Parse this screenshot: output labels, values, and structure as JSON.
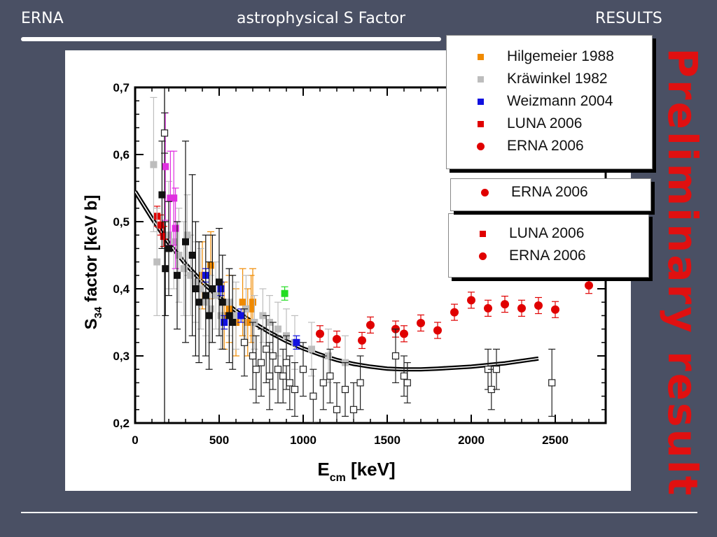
{
  "header": {
    "left": "ERNA",
    "center": "astrophysical S Factor",
    "right": "RESULTS"
  },
  "watermark": "Preliminary result",
  "legend_main": [
    {
      "label": "Hilgemeier 1988",
      "color": "#f08a00",
      "shape": "square"
    },
    {
      "label": "Kräwinkel 1982",
      "color": "#bdbdbd",
      "shape": "square"
    },
    {
      "label": "Weizmann 2004",
      "color": "#1010e0",
      "shape": "square"
    },
    {
      "label": "LUNA 2006",
      "color": "#e00000",
      "shape": "square"
    },
    {
      "label": "ERNA 2006",
      "color": "#e00000",
      "shape": "circle"
    }
  ],
  "legend_ghost": [
    {
      "label": "ERNA 2006",
      "color": "#e00000",
      "shape": "circle"
    }
  ],
  "legend_lower": [
    {
      "label": "LUNA 2006",
      "color": "#e00000",
      "shape": "square"
    },
    {
      "label": "ERNA 2006",
      "color": "#e00000",
      "shape": "circle"
    }
  ],
  "chart_data": {
    "type": "scatter",
    "xlabel_main": "E",
    "xlabel_sub": "cm",
    "xlabel_unit": "[keV]",
    "ylabel_main": "S",
    "ylabel_sub": "34",
    "ylabel_rest": "factor [keV b]",
    "xlim": [
      0,
      2800
    ],
    "ylim": [
      0.2,
      0.7
    ],
    "xticks": [
      0,
      500,
      1000,
      1500,
      2000,
      2500
    ],
    "xtick_labels": [
      "0",
      "500",
      "1000",
      "1500",
      "2000",
      "2500"
    ],
    "yticks": [
      0.2,
      0.3,
      0.4,
      0.5,
      0.6,
      0.7
    ],
    "ytick_labels": [
      "0,2",
      "0,3",
      "0,4",
      "0,5",
      "0,6",
      "0,7"
    ],
    "series": [
      {
        "name": "ERNA 2006",
        "color": "#e00000",
        "marker": "circle",
        "x": [
          1100,
          1200,
          1350,
          1400,
          1550,
          1600,
          1700,
          1800,
          1900,
          2000,
          2100,
          2200,
          2300,
          2400,
          2500,
          2700
        ],
        "y": [
          0.333,
          0.325,
          0.323,
          0.346,
          0.34,
          0.333,
          0.349,
          0.338,
          0.365,
          0.383,
          0.371,
          0.377,
          0.371,
          0.375,
          0.369,
          0.405
        ],
        "err": [
          0.012,
          0.012,
          0.012,
          0.012,
          0.012,
          0.012,
          0.012,
          0.012,
          0.012,
          0.012,
          0.012,
          0.012,
          0.012,
          0.012,
          0.012,
          0.012
        ]
      },
      {
        "name": "LUNA 2006",
        "color": "#e00000",
        "marker": "square",
        "x": [
          130,
          150,
          170
        ],
        "y": [
          0.508,
          0.495,
          0.478
        ],
        "err": [
          0.015,
          0.015,
          0.015
        ]
      },
      {
        "name": "Hilgemeier 1988",
        "color": "#f08a00",
        "marker": "square",
        "x": [
          400,
          450,
          530,
          560,
          600,
          640,
          670,
          690,
          700
        ],
        "y": [
          0.42,
          0.435,
          0.36,
          0.37,
          0.35,
          0.38,
          0.35,
          0.37,
          0.38
        ],
        "err": [
          0.05,
          0.05,
          0.05,
          0.05,
          0.05,
          0.05,
          0.05,
          0.05,
          0.05
        ]
      },
      {
        "name": "Kräwinkel 1982",
        "color": "#bdbdbd",
        "marker": "square",
        "x": [
          110,
          130,
          200,
          230,
          260,
          290,
          310,
          330,
          360,
          390,
          420,
          450,
          480,
          510,
          560,
          600,
          660,
          710,
          760,
          800,
          850,
          900,
          950,
          1050,
          1150,
          1250
        ],
        "y": [
          0.585,
          0.44,
          0.48,
          0.47,
          0.45,
          0.43,
          0.48,
          0.42,
          0.41,
          0.4,
          0.38,
          0.37,
          0.39,
          0.36,
          0.38,
          0.36,
          0.37,
          0.35,
          0.36,
          0.35,
          0.34,
          0.33,
          0.32,
          0.31,
          0.3,
          0.29
        ],
        "err": [
          0.1,
          0.08,
          0.08,
          0.07,
          0.07,
          0.07,
          0.06,
          0.06,
          0.06,
          0.06,
          0.05,
          0.05,
          0.05,
          0.05,
          0.05,
          0.05,
          0.05,
          0.04,
          0.04,
          0.04,
          0.04,
          0.04,
          0.04,
          0.04,
          0.04,
          0.04
        ]
      },
      {
        "name": "Weizmann 2004",
        "color": "#1010e0",
        "marker": "square",
        "x": [
          420,
          510,
          530,
          630,
          960
        ],
        "y": [
          0.42,
          0.4,
          0.35,
          0.36,
          0.32
        ],
        "err": [
          0.01,
          0.01,
          0.01,
          0.01,
          0.01
        ]
      },
      {
        "name": "",
        "color": "#e030e0",
        "marker": "square",
        "x": [
          180,
          210,
          230,
          240
        ],
        "y": [
          0.582,
          0.535,
          0.535,
          0.49
        ],
        "err": [
          0.08,
          0.07,
          0.07,
          0.06
        ]
      },
      {
        "name": "",
        "color": "#111111",
        "marker": "square",
        "x": [
          160,
          180,
          200,
          250,
          300,
          340,
          360,
          380,
          420,
          440,
          460,
          500,
          520,
          560,
          580
        ],
        "y": [
          0.54,
          0.43,
          0.46,
          0.42,
          0.47,
          0.45,
          0.4,
          0.38,
          0.39,
          0.36,
          0.4,
          0.41,
          0.38,
          0.36,
          0.35
        ],
        "err": [
          0.08,
          0.07,
          0.07,
          0.08,
          0.15,
          0.12,
          0.1,
          0.09,
          0.09,
          0.08,
          0.08,
          0.08,
          0.07,
          0.07,
          0.07
        ]
      },
      {
        "name": "",
        "color": "#222222",
        "marker": "open-square",
        "x": [
          175,
          650,
          700,
          720,
          750,
          780,
          800,
          820,
          850,
          880,
          900,
          920,
          950,
          1000,
          1060,
          1120,
          1160,
          1200,
          1250,
          1300,
          1340,
          1550,
          1600,
          1620,
          2100,
          2120,
          2150,
          2480
        ],
        "y": [
          0.632,
          0.32,
          0.3,
          0.28,
          0.29,
          0.31,
          0.27,
          0.3,
          0.28,
          0.27,
          0.29,
          0.26,
          0.25,
          0.28,
          0.24,
          0.26,
          0.27,
          0.22,
          0.25,
          0.22,
          0.26,
          0.3,
          0.27,
          0.26,
          0.28,
          0.25,
          0.28,
          0.26
        ],
        "err": [
          0.03,
          0.05,
          0.05,
          0.05,
          0.05,
          0.05,
          0.05,
          0.05,
          0.05,
          0.04,
          0.04,
          0.04,
          0.04,
          0.04,
          0.04,
          0.04,
          0.04,
          0.04,
          0.04,
          0.04,
          0.04,
          0.04,
          0.03,
          0.03,
          0.03,
          0.03,
          0.03,
          0.05
        ]
      },
      {
        "name": "",
        "color": "#22dd22",
        "marker": "square",
        "x": [
          890
        ],
        "y": [
          0.393
        ],
        "err": [
          0.01
        ]
      }
    ],
    "curve": {
      "color": "#000000",
      "x": [
        0,
        100,
        200,
        300,
        400,
        500,
        600,
        700,
        800,
        900,
        1000,
        1100,
        1200,
        1300,
        1400,
        1500,
        1600,
        1700,
        1800,
        2000,
        2200,
        2400
      ],
      "y": [
        0.545,
        0.505,
        0.468,
        0.437,
        0.41,
        0.387,
        0.367,
        0.35,
        0.335,
        0.322,
        0.311,
        0.302,
        0.294,
        0.288,
        0.284,
        0.281,
        0.28,
        0.28,
        0.281,
        0.284,
        0.289,
        0.296
      ]
    }
  }
}
